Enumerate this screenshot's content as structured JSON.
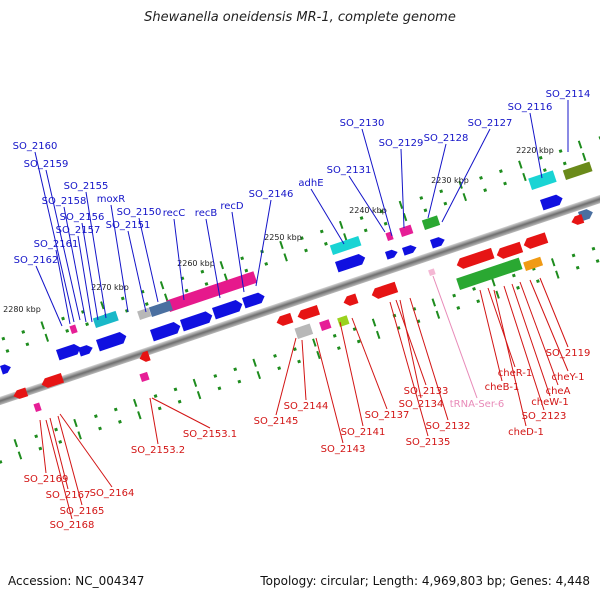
{
  "title": "Shewanella oneidensis MR-1, complete genome",
  "footer": {
    "accession": "Accession: NC_004347",
    "topology": "Topology: circular; Length: 4,969,803 bp; Genes: 4,448"
  },
  "colors": {
    "forward_label": "#1414c8",
    "reverse_label": "#d21414",
    "trna_label": "#e88ab8",
    "backbone": "#7a7a7a",
    "tick": "#1e8c1e"
  },
  "kbp_ticks": [
    "2220 kbp",
    "2230 kbp",
    "2240 kbp",
    "2250 kbp",
    "2260 kbp",
    "2270 kbp",
    "2280 kbp"
  ],
  "forward_genes": [
    "SO_2114",
    "SO_2116",
    "SO_2127",
    "SO_2128",
    "SO_2129",
    "SO_2130",
    "SO_2131",
    "adhE",
    "SO_2146",
    "recD",
    "recB",
    "recC",
    "SO_2150",
    "SO_2151",
    "moxR",
    "SO_2155",
    "SO_2156",
    "SO_2157",
    "SO_2158",
    "SO_2159",
    "SO_2160",
    "SO_2161",
    "SO_2162"
  ],
  "reverse_genes": [
    "SO_2119",
    "cheY-1",
    "cheA",
    "cheW-1",
    "SO_2123",
    "cheR-1",
    "cheB-1",
    "cheD-1",
    "tRNA-Ser-6",
    "SO_2132",
    "SO_2133",
    "SO_2134",
    "SO_2135",
    "SO_2137",
    "SO_2141",
    "SO_2143",
    "SO_2144",
    "SO_2145",
    "SO_2153.1",
    "SO_2153.2",
    "SO_2164",
    "SO_2165",
    "SO_2167",
    "SO_2168",
    "SO_2169"
  ]
}
